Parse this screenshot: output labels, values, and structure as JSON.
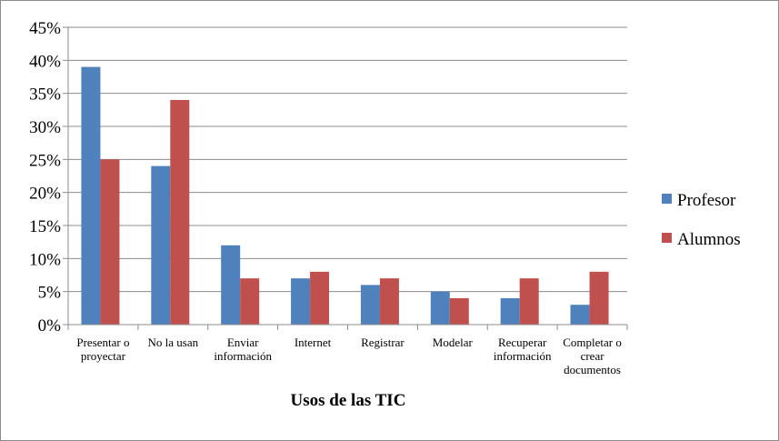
{
  "chart_data": {
    "type": "bar",
    "title": "",
    "xlabel": "Usos de las TIC",
    "ylabel": "",
    "ylim": [
      0,
      45
    ],
    "y_ticks": [
      0,
      5,
      10,
      15,
      20,
      25,
      30,
      35,
      40,
      45
    ],
    "y_tick_format": "%",
    "grid": true,
    "legend_position": "right",
    "categories": [
      "Presentar o proyectar",
      "No la usan",
      "Enviar información",
      "Internet",
      "Registrar",
      "Modelar",
      "Recuperar información",
      "Completar o crear documentos"
    ],
    "category_lines": [
      [
        "Presentar o",
        "proyectar"
      ],
      [
        "No la usan"
      ],
      [
        "Enviar",
        "información"
      ],
      [
        "Internet"
      ],
      [
        "Registrar"
      ],
      [
        "Modelar"
      ],
      [
        "Recuperar",
        "información"
      ],
      [
        "Completar o",
        "crear",
        "documentos"
      ]
    ],
    "series": [
      {
        "name": "Profesor",
        "color": "#4f81bd",
        "values": [
          39,
          24,
          12,
          7,
          6,
          5,
          4,
          3
        ]
      },
      {
        "name": "Alumnos",
        "color": "#c0504d",
        "values": [
          25,
          34,
          7,
          8,
          7,
          4,
          7,
          8
        ]
      }
    ]
  }
}
